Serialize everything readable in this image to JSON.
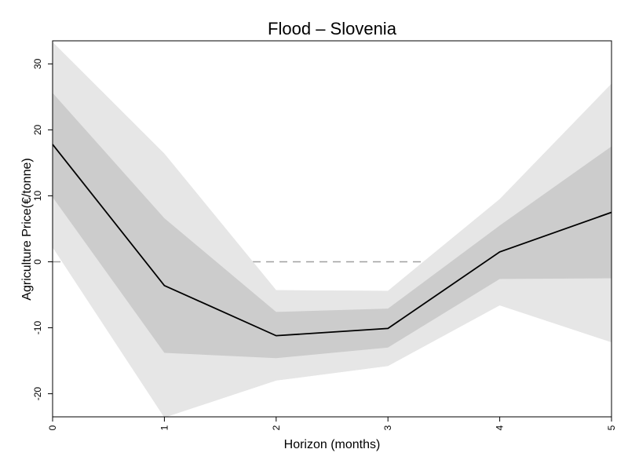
{
  "chart_data": {
    "type": "line",
    "title": "Flood – Slovenia",
    "xlabel": "Horizon (months)",
    "ylabel": "Agriculture Price(€/tonne)",
    "x": [
      0,
      1,
      2,
      3,
      4,
      5
    ],
    "xlim": [
      0,
      5
    ],
    "ylim": [
      -23.5,
      33.5
    ],
    "yticks": [
      -20,
      -10,
      0,
      10,
      20,
      30
    ],
    "xticks": [
      0,
      1,
      2,
      3,
      4,
      5
    ],
    "series": [
      {
        "values": [
          17.8,
          -3.6,
          -11.2,
          -10.1,
          1.5,
          7.5
        ]
      }
    ],
    "bands": [
      {
        "level": "outer",
        "lower": [
          2.2,
          -23.6,
          -18.0,
          -15.8,
          -6.6,
          -12.2
        ],
        "upper": [
          33.3,
          16.4,
          -4.3,
          -4.4,
          9.5,
          27.0
        ]
      },
      {
        "level": "inner",
        "lower": [
          9.8,
          -13.8,
          -14.6,
          -13.0,
          -2.6,
          -2.5
        ],
        "upper": [
          25.6,
          6.6,
          -7.6,
          -7.1,
          5.5,
          17.5
        ]
      }
    ],
    "reference_line": {
      "y": 0,
      "style": "dashed"
    },
    "colors": {
      "outer_band": "#e6e6e6",
      "inner_band": "#cccccc",
      "line": "#000000",
      "reference": "#a0a0a0"
    },
    "grid": false,
    "legend": "none"
  }
}
